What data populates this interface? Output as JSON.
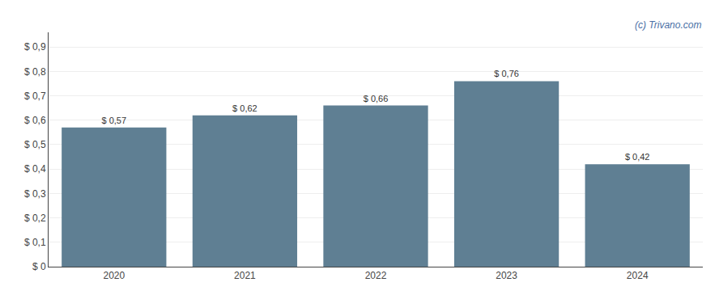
{
  "chart_data": {
    "type": "bar",
    "categories": [
      "2020",
      "2021",
      "2022",
      "2023",
      "2024"
    ],
    "values": [
      0.57,
      0.62,
      0.66,
      0.76,
      0.42
    ],
    "value_labels": [
      "$ 0,57",
      "$ 0,62",
      "$ 0,66",
      "$ 0,76",
      "$ 0,42"
    ],
    "data_labels": true,
    "color": "#5f7f93",
    "ylim": [
      0,
      0.96
    ],
    "yticks": [
      {
        "value": 0.0,
        "label": "$ 0"
      },
      {
        "value": 0.1,
        "label": "$ 0,1"
      },
      {
        "value": 0.2,
        "label": "$ 0,2"
      },
      {
        "value": 0.3,
        "label": "$ 0,3"
      },
      {
        "value": 0.4,
        "label": "$ 0,4"
      },
      {
        "value": 0.5,
        "label": "$ 0,5"
      },
      {
        "value": 0.6,
        "label": "$ 0,6"
      },
      {
        "value": 0.7,
        "label": "$ 0,7"
      },
      {
        "value": 0.8,
        "label": "$ 0,8"
      },
      {
        "value": 0.9,
        "label": "$ 0,9"
      }
    ],
    "grid": true,
    "annotations": [
      {
        "text": "(c) Trivano.com",
        "color": "#4a6fa5"
      }
    ]
  }
}
